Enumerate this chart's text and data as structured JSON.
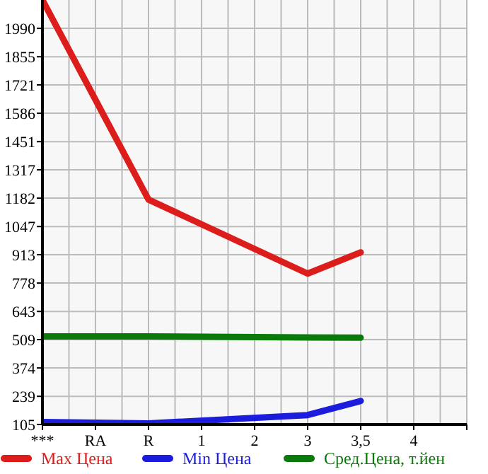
{
  "chart_data": {
    "type": "line",
    "categories": [
      "***",
      "RA",
      "R",
      "1",
      "2",
      "3",
      "3,5",
      "4"
    ],
    "series": [
      {
        "name": "Max Цена",
        "color": "#dd1c1c",
        "values": [
          2125,
          null,
          1175,
          null,
          null,
          823,
          924,
          null
        ]
      },
      {
        "name": "Min Цена",
        "color": "#1c1cdd",
        "values": [
          117,
          null,
          110,
          null,
          null,
          150,
          217,
          null
        ]
      },
      {
        "name": "Сред.Цена, т.йен",
        "color": "#0a7a0a",
        "values": [
          524,
          null,
          524,
          null,
          null,
          519,
          518,
          null
        ]
      }
    ],
    "ylim": [
      105,
      2125
    ],
    "yticks": [
      105,
      239,
      374,
      509,
      643,
      778,
      913,
      1047,
      1182,
      1317,
      1451,
      1586,
      1721,
      1855,
      1990
    ],
    "grid": true,
    "legend": "bottom",
    "marker": "none",
    "line_style": "solid"
  }
}
